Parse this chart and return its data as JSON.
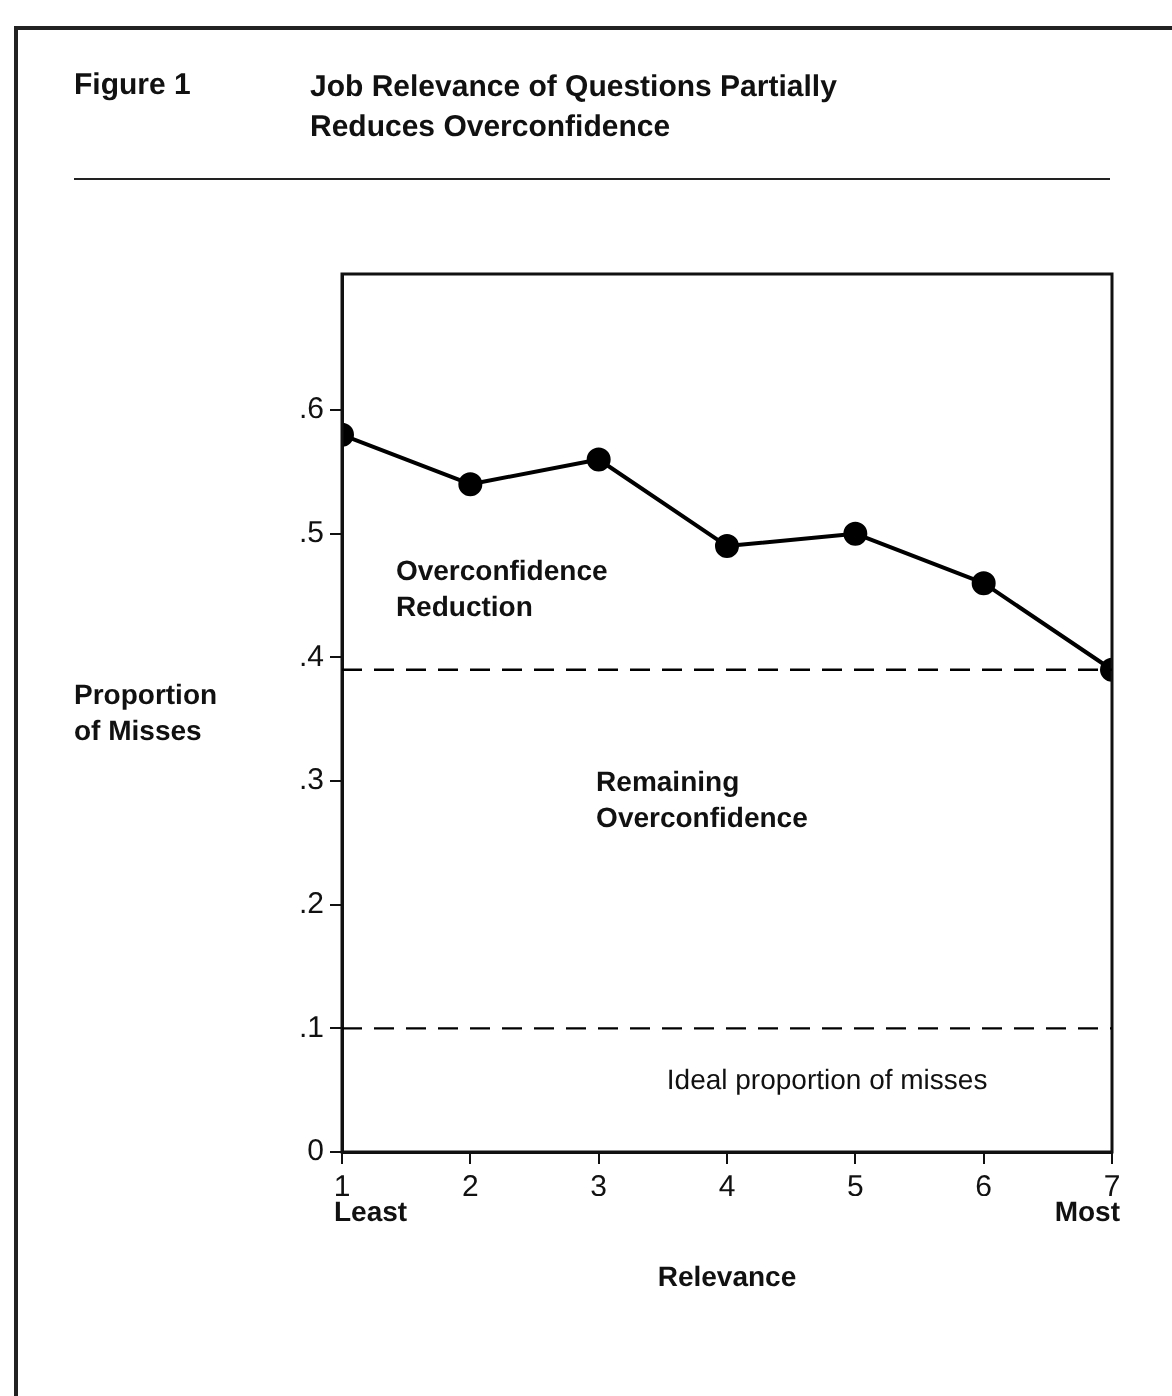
{
  "chart_data": {
    "type": "line",
    "title": "Job Relevance of Questions Partially Reduces Overconfidence",
    "xlabel": "Relevance",
    "ylabel": "Proportion of Misses",
    "x": [
      1,
      2,
      3,
      4,
      5,
      6,
      7
    ],
    "series": [
      {
        "color": "#000000",
        "values": [
          0.58,
          0.54,
          0.56,
          0.49,
          0.5,
          0.46,
          0.39
        ]
      }
    ],
    "xlim": [
      1,
      7
    ],
    "xticks": [
      1,
      2,
      3,
      4,
      5,
      6,
      7
    ],
    "ylim": [
      0,
      0.71
    ],
    "yticks": [
      0,
      {
        "value": 0.1,
        "label": ".1"
      },
      {
        "value": 0.2,
        "label": ".2"
      },
      {
        "value": 0.3,
        "label": ".3"
      },
      {
        "value": 0.4,
        "label": ".4"
      },
      {
        "value": 0.5,
        "label": ".5"
      },
      {
        "value": 0.6,
        "label": ".6"
      }
    ],
    "ref_lines": [
      {
        "axis": "y",
        "value": 0.39,
        "color": "#000000",
        "line_style": "dashed"
      },
      {
        "axis": "y",
        "value": 0.1,
        "color": "#000000",
        "line_style": "dashed"
      }
    ],
    "annotations": [
      "Figure 1",
      "Least",
      "Most",
      "Overconfidence Reduction",
      "Remaining Overconfidence",
      "Ideal proportion of misses"
    ],
    "grid": false,
    "legend": false,
    "marker": "circle",
    "line_style": "solid"
  }
}
